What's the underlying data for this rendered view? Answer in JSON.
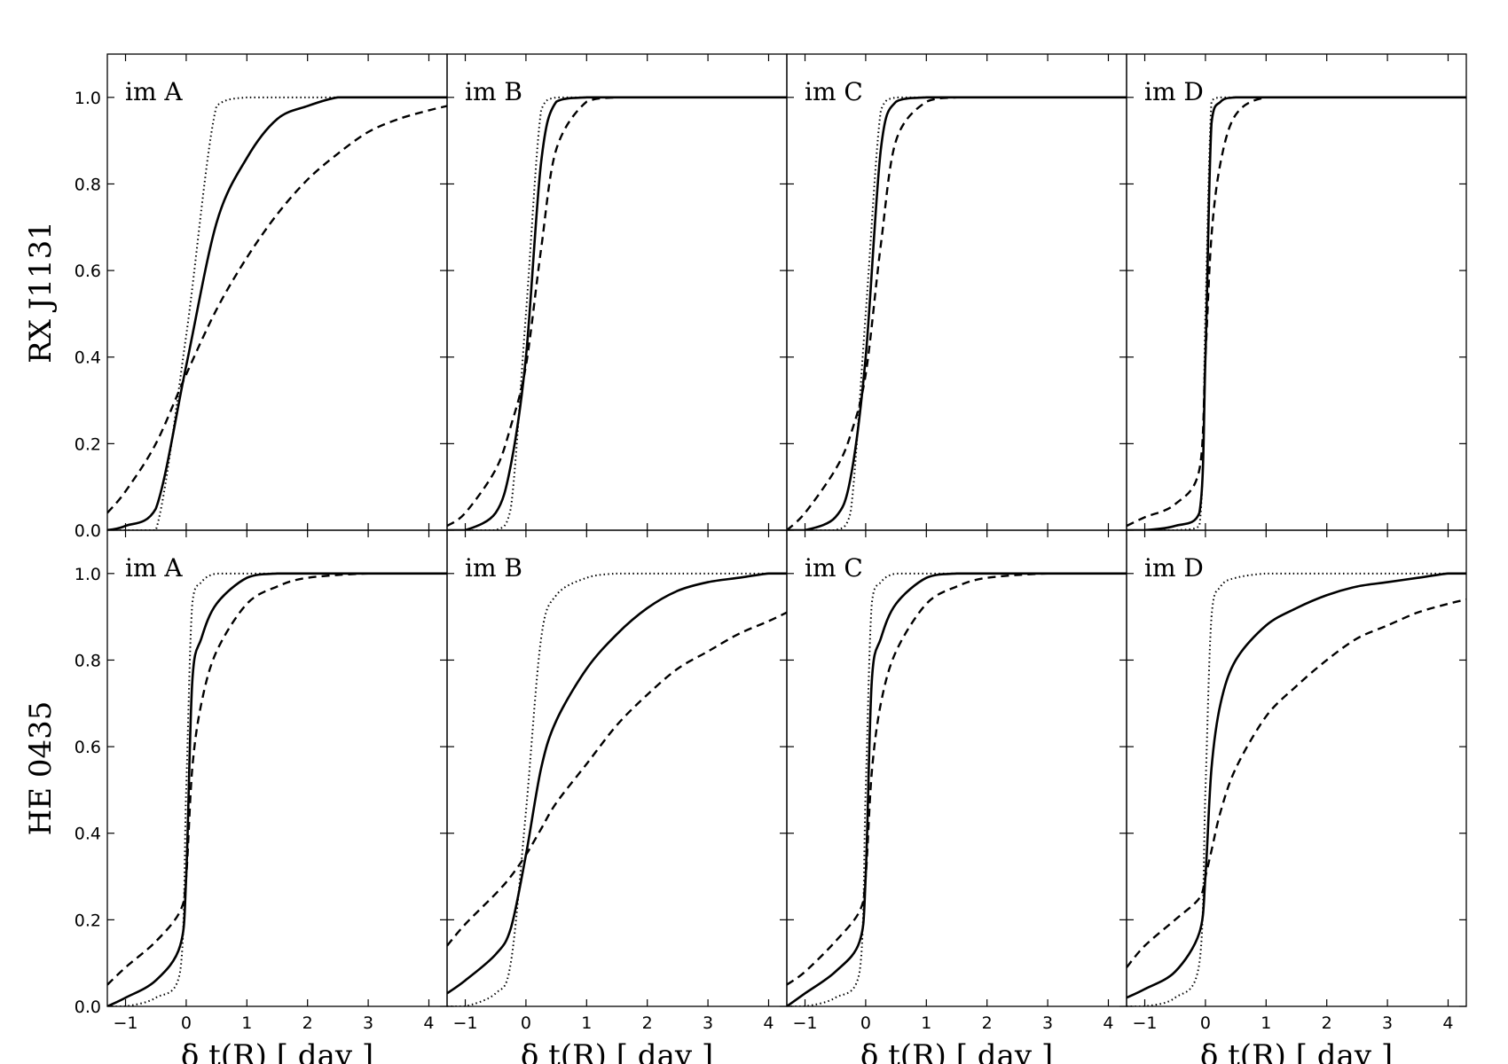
{
  "figure": {
    "xlabel": "δ t(R) [ day ]",
    "rows": [
      "RX J1131",
      "HE 0435"
    ],
    "x_tick_labels": [
      "−1",
      "0",
      "1",
      "2",
      "3",
      "4"
    ],
    "y_tick_labels": [
      "0.0",
      "0.2",
      "0.4",
      "0.6",
      "0.8",
      "1.0"
    ]
  },
  "chart_data": [
    {
      "type": "line",
      "row": "RX J1131",
      "label": "im A",
      "xlim": [
        -1.3,
        4.3
      ],
      "ylim": [
        0,
        1.1
      ],
      "grid": false,
      "x": [
        -1.3,
        -1.0,
        -0.5,
        0.0,
        0.5,
        1.0,
        1.5,
        2.0,
        2.5,
        3.0,
        3.5,
        4.0,
        4.3
      ],
      "series": [
        {
          "style": "solid",
          "values": [
            0.0,
            0.01,
            0.05,
            0.38,
            0.71,
            0.86,
            0.95,
            0.98,
            1.0,
            1.0,
            1.0,
            1.0,
            1.0
          ]
        },
        {
          "style": "dashed",
          "values": [
            0.04,
            0.09,
            0.2,
            0.36,
            0.51,
            0.63,
            0.73,
            0.81,
            0.87,
            0.92,
            0.95,
            0.97,
            0.98
          ]
        },
        {
          "style": "dotted",
          "values": [
            0.0,
            0.0,
            0.0,
            0.45,
            0.98,
            1.0,
            1.0,
            1.0,
            1.0,
            1.0,
            1.0,
            1.0,
            1.0
          ]
        }
      ]
    },
    {
      "type": "line",
      "row": "RX J1131",
      "label": "im B",
      "xlim": [
        -1.3,
        4.3
      ],
      "ylim": [
        0,
        1.1
      ],
      "grid": false,
      "x": [
        -1.3,
        -1.0,
        -0.5,
        -0.25,
        0.0,
        0.25,
        0.5,
        1.0,
        1.5,
        2.0,
        4.3
      ],
      "series": [
        {
          "style": "solid",
          "values": [
            0.0,
            0.0,
            0.04,
            0.15,
            0.4,
            0.85,
            0.99,
            1.0,
            1.0,
            1.0,
            1.0
          ]
        },
        {
          "style": "dashed",
          "values": [
            0.01,
            0.04,
            0.14,
            0.24,
            0.38,
            0.65,
            0.88,
            0.99,
            1.0,
            1.0,
            1.0
          ]
        },
        {
          "style": "dotted",
          "values": [
            0.0,
            0.0,
            0.0,
            0.05,
            0.5,
            0.97,
            1.0,
            1.0,
            1.0,
            1.0,
            1.0
          ]
        }
      ]
    },
    {
      "type": "line",
      "row": "RX J1131",
      "label": "im C",
      "xlim": [
        -1.3,
        4.3
      ],
      "ylim": [
        0,
        1.1
      ],
      "grid": false,
      "x": [
        -1.3,
        -1.0,
        -0.5,
        -0.25,
        0.0,
        0.25,
        0.5,
        1.0,
        1.5,
        2.0,
        4.3
      ],
      "series": [
        {
          "style": "solid",
          "values": [
            0.0,
            0.0,
            0.03,
            0.12,
            0.4,
            0.88,
            0.99,
            1.0,
            1.0,
            1.0,
            1.0
          ]
        },
        {
          "style": "dashed",
          "values": [
            0.0,
            0.04,
            0.14,
            0.22,
            0.36,
            0.66,
            0.9,
            0.99,
            1.0,
            1.0,
            1.0
          ]
        },
        {
          "style": "dotted",
          "values": [
            0.0,
            0.0,
            0.0,
            0.04,
            0.5,
            0.97,
            1.0,
            1.0,
            1.0,
            1.0,
            1.0
          ]
        }
      ]
    },
    {
      "type": "line",
      "row": "RX J1131",
      "label": "im D",
      "xlim": [
        -1.3,
        4.3
      ],
      "ylim": [
        0,
        1.1
      ],
      "grid": false,
      "x": [
        -1.3,
        -1.0,
        -0.5,
        -0.1,
        0.0,
        0.1,
        0.25,
        0.5,
        1.0,
        2.0,
        4.3
      ],
      "series": [
        {
          "style": "solid",
          "values": [
            0.0,
            0.0,
            0.01,
            0.04,
            0.4,
            0.94,
            0.99,
            1.0,
            1.0,
            1.0,
            1.0
          ]
        },
        {
          "style": "dashed",
          "values": [
            0.01,
            0.03,
            0.06,
            0.14,
            0.4,
            0.68,
            0.85,
            0.96,
            1.0,
            1.0,
            1.0
          ]
        },
        {
          "style": "dotted",
          "values": [
            0.0,
            0.0,
            0.0,
            0.01,
            0.5,
            0.99,
            1.0,
            1.0,
            1.0,
            1.0,
            1.0
          ]
        }
      ]
    },
    {
      "type": "line",
      "row": "HE 0435",
      "label": "im A",
      "xlim": [
        -1.3,
        4.3
      ],
      "ylim": [
        0,
        1.1
      ],
      "grid": false,
      "x": [
        -1.3,
        -1.0,
        -0.5,
        -0.1,
        0.0,
        0.1,
        0.25,
        0.5,
        1.0,
        1.5,
        2.0,
        3.0,
        4.3
      ],
      "series": [
        {
          "style": "solid",
          "values": [
            0.0,
            0.02,
            0.06,
            0.14,
            0.3,
            0.75,
            0.85,
            0.93,
            0.99,
            1.0,
            1.0,
            1.0,
            1.0
          ]
        },
        {
          "style": "dashed",
          "values": [
            0.05,
            0.09,
            0.15,
            0.22,
            0.3,
            0.55,
            0.7,
            0.82,
            0.93,
            0.97,
            0.99,
            1.0,
            1.0
          ]
        },
        {
          "style": "dotted",
          "values": [
            0.0,
            0.0,
            0.02,
            0.08,
            0.5,
            0.93,
            0.98,
            1.0,
            1.0,
            1.0,
            1.0,
            1.0,
            1.0
          ]
        }
      ]
    },
    {
      "type": "line",
      "row": "HE 0435",
      "label": "im B",
      "xlim": [
        -1.3,
        4.3
      ],
      "ylim": [
        0,
        1.1
      ],
      "grid": false,
      "x": [
        -1.3,
        -1.0,
        -0.5,
        -0.25,
        0.0,
        0.25,
        0.5,
        1.0,
        1.5,
        2.0,
        2.5,
        3.0,
        3.5,
        4.0,
        4.3
      ],
      "series": [
        {
          "style": "solid",
          "values": [
            0.03,
            0.06,
            0.12,
            0.18,
            0.35,
            0.55,
            0.66,
            0.78,
            0.86,
            0.92,
            0.96,
            0.98,
            0.99,
            1.0,
            1.0
          ]
        },
        {
          "style": "dashed",
          "values": [
            0.14,
            0.19,
            0.26,
            0.3,
            0.35,
            0.41,
            0.47,
            0.56,
            0.65,
            0.72,
            0.78,
            0.82,
            0.86,
            0.89,
            0.91
          ]
        },
        {
          "style": "dotted",
          "values": [
            0.0,
            0.0,
            0.03,
            0.1,
            0.45,
            0.85,
            0.95,
            0.99,
            1.0,
            1.0,
            1.0,
            1.0,
            1.0,
            1.0,
            1.0
          ]
        }
      ]
    },
    {
      "type": "line",
      "row": "HE 0435",
      "label": "im C",
      "xlim": [
        -1.3,
        4.3
      ],
      "ylim": [
        0,
        1.1
      ],
      "grid": false,
      "x": [
        -1.3,
        -1.0,
        -0.5,
        -0.1,
        0.0,
        0.1,
        0.25,
        0.5,
        1.0,
        1.5,
        2.0,
        3.0,
        4.3
      ],
      "series": [
        {
          "style": "solid",
          "values": [
            0.0,
            0.03,
            0.08,
            0.15,
            0.3,
            0.75,
            0.85,
            0.93,
            0.99,
            1.0,
            1.0,
            1.0,
            1.0
          ]
        },
        {
          "style": "dashed",
          "values": [
            0.05,
            0.08,
            0.15,
            0.22,
            0.3,
            0.54,
            0.7,
            0.82,
            0.93,
            0.97,
            0.99,
            1.0,
            1.0
          ]
        },
        {
          "style": "dotted",
          "values": [
            0.0,
            0.0,
            0.02,
            0.08,
            0.5,
            0.93,
            0.98,
            1.0,
            1.0,
            1.0,
            1.0,
            1.0,
            1.0
          ]
        }
      ]
    },
    {
      "type": "line",
      "row": "HE 0435",
      "label": "im D",
      "xlim": [
        -1.3,
        4.3
      ],
      "ylim": [
        0,
        1.1
      ],
      "grid": false,
      "x": [
        -1.3,
        -1.0,
        -0.5,
        -0.1,
        0.0,
        0.1,
        0.25,
        0.5,
        1.0,
        1.5,
        2.0,
        2.5,
        3.0,
        3.5,
        4.0,
        4.3
      ],
      "series": [
        {
          "style": "solid",
          "values": [
            0.02,
            0.04,
            0.08,
            0.17,
            0.3,
            0.55,
            0.7,
            0.8,
            0.88,
            0.92,
            0.95,
            0.97,
            0.98,
            0.99,
            1.0,
            1.0
          ]
        },
        {
          "style": "dashed",
          "values": [
            0.09,
            0.14,
            0.2,
            0.25,
            0.3,
            0.36,
            0.45,
            0.55,
            0.67,
            0.74,
            0.8,
            0.85,
            0.88,
            0.91,
            0.93,
            0.94
          ]
        },
        {
          "style": "dotted",
          "values": [
            0.0,
            0.0,
            0.02,
            0.1,
            0.5,
            0.9,
            0.97,
            0.99,
            1.0,
            1.0,
            1.0,
            1.0,
            1.0,
            1.0,
            1.0,
            1.0
          ]
        }
      ]
    }
  ]
}
